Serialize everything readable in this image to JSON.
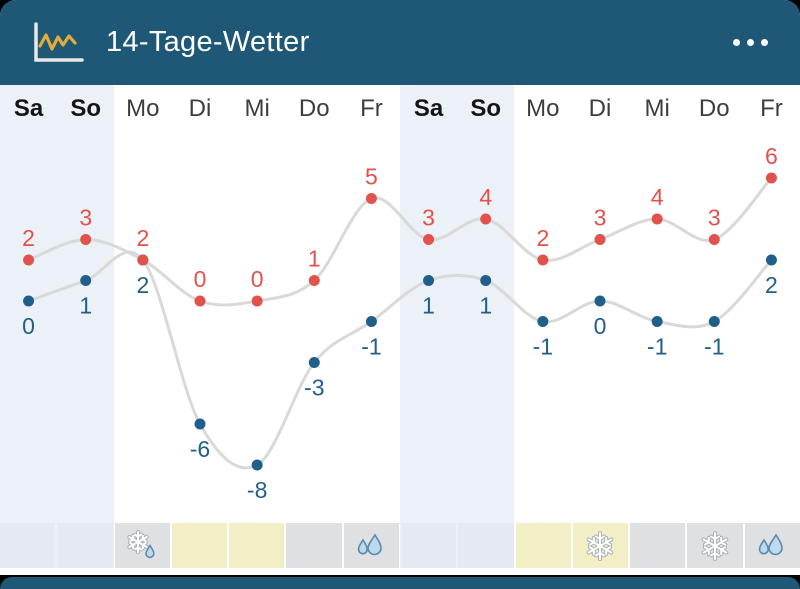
{
  "header": {
    "title": "14-Tage-Wetter",
    "icon": "line-chart-icon",
    "menu_icon": "ellipsis-icon"
  },
  "colors": {
    "header_bg": "#1E5876",
    "high": "#E1524D",
    "low": "#205F8A",
    "line": "#D9D9D9",
    "weekend_band": "#EBF1F6",
    "cell_gray": "#DFE0E1",
    "cell_yellow": "#F2EEC6",
    "cell_weekend": "#E4EAEF"
  },
  "chart_data": {
    "type": "line",
    "title": "14-Tage-Wetter",
    "categories": [
      "Sa",
      "So",
      "Mo",
      "Di",
      "Mi",
      "Do",
      "Fr",
      "Sa",
      "So",
      "Mo",
      "Di",
      "Mi",
      "Do",
      "Fr"
    ],
    "weekend_indices": [
      0,
      1,
      7,
      8
    ],
    "series": [
      {
        "name": "high",
        "color": "#E1524D",
        "values": [
          2,
          3,
          2,
          0,
          0,
          1,
          5,
          3,
          4,
          2,
          3,
          4,
          3,
          6
        ]
      },
      {
        "name": "low",
        "color": "#205F8A",
        "values": [
          0,
          1,
          2,
          -6,
          -8,
          -3,
          -1,
          1,
          1,
          -1,
          0,
          -1,
          -1,
          2
        ]
      }
    ],
    "ylim": [
      -8,
      6
    ],
    "xlabel": "",
    "ylabel": "",
    "legend": "none",
    "grid": false
  },
  "strip": {
    "cells": [
      {
        "bg": "weekend",
        "icon": null
      },
      {
        "bg": "weekend",
        "icon": null
      },
      {
        "bg": "gray",
        "icon": "sleet"
      },
      {
        "bg": "yellow",
        "icon": null
      },
      {
        "bg": "yellow",
        "icon": null
      },
      {
        "bg": "gray",
        "icon": null
      },
      {
        "bg": "gray",
        "icon": "rain"
      },
      {
        "bg": "weekend",
        "icon": null
      },
      {
        "bg": "weekend",
        "icon": null
      },
      {
        "bg": "yellow",
        "icon": null
      },
      {
        "bg": "yellow",
        "icon": "snow"
      },
      {
        "bg": "gray",
        "icon": null
      },
      {
        "bg": "gray",
        "icon": "snow"
      },
      {
        "bg": "gray",
        "icon": "rain"
      }
    ]
  }
}
